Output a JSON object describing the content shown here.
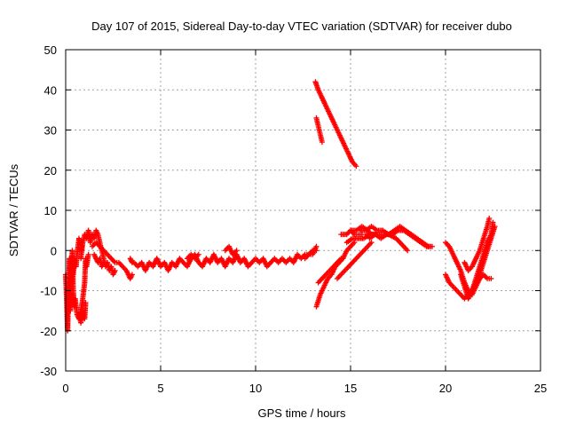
{
  "chart_data": {
    "type": "scatter",
    "title": "Day 107 of 2015, Sidereal Day-to-day VTEC variation (SDTVAR) for receiver dubo",
    "xlabel": "GPS time / hours",
    "ylabel": "SDTVAR / TECUs",
    "xlim": [
      0,
      25
    ],
    "ylim": [
      -30,
      50
    ],
    "xticks": [
      0,
      5,
      10,
      15,
      20,
      25
    ],
    "yticks": [
      -30,
      -20,
      -10,
      0,
      10,
      20,
      30,
      40,
      50
    ],
    "grid": true,
    "marker": "+",
    "series": [
      {
        "name": "SDTVAR",
        "color": "#ff0000",
        "segments": [
          [
            [
              0.0,
              -6
            ],
            [
              0.05,
              -12
            ],
            [
              0.1,
              -20
            ],
            [
              0.15,
              -10
            ],
            [
              0.2,
              -2
            ],
            [
              0.25,
              -15
            ],
            [
              0.3,
              -5
            ],
            [
              0.35,
              0
            ],
            [
              0.4,
              -10
            ],
            [
              0.45,
              -14
            ],
            [
              0.5,
              -12
            ],
            [
              0.6,
              -16
            ],
            [
              0.7,
              -17
            ],
            [
              0.8,
              -15
            ],
            [
              0.9,
              -12
            ],
            [
              1.0,
              -8
            ],
            [
              1.05,
              -2
            ],
            [
              1.1,
              -4
            ],
            [
              1.2,
              -1
            ]
          ],
          [
            [
              0.25,
              -4
            ],
            [
              0.3,
              -8
            ],
            [
              0.35,
              -3
            ],
            [
              0.4,
              -6
            ],
            [
              0.45,
              -2
            ],
            [
              0.55,
              -4
            ],
            [
              0.6,
              -1
            ],
            [
              0.7,
              3
            ],
            [
              0.8,
              0
            ],
            [
              0.9,
              2
            ]
          ],
          [
            [
              0.7,
              -16
            ],
            [
              0.8,
              -18
            ],
            [
              0.9,
              -15
            ],
            [
              1.0,
              -17
            ],
            [
              1.05,
              -13
            ]
          ],
          [
            [
              0.8,
              -2
            ],
            [
              0.9,
              2
            ],
            [
              1.0,
              4
            ],
            [
              1.1,
              3
            ],
            [
              1.2,
              5
            ],
            [
              1.3,
              2
            ],
            [
              1.4,
              4
            ],
            [
              1.5,
              3
            ],
            [
              1.6,
              5
            ],
            [
              1.7,
              4
            ],
            [
              1.8,
              2
            ],
            [
              1.9,
              0
            ],
            [
              2.0,
              -2
            ],
            [
              2.1,
              -4
            ],
            [
              2.2,
              -3
            ],
            [
              2.3,
              -5
            ],
            [
              2.4,
              -4
            ],
            [
              2.5,
              -6
            ],
            [
              2.6,
              -5
            ]
          ],
          [
            [
              1.5,
              -1
            ],
            [
              1.6,
              -2
            ],
            [
              1.7,
              -3
            ],
            [
              1.8,
              -2
            ],
            [
              1.9,
              -4
            ],
            [
              2.0,
              -3
            ]
          ],
          [
            [
              1.4,
              1
            ],
            [
              1.6,
              2
            ],
            [
              1.8,
              1
            ],
            [
              2.0,
              0
            ],
            [
              2.2,
              -1
            ],
            [
              2.4,
              -2
            ],
            [
              2.6,
              -3
            ],
            [
              2.8,
              -3
            ],
            [
              3.0,
              -4
            ],
            [
              3.2,
              -5
            ],
            [
              3.4,
              -7
            ],
            [
              3.5,
              -6
            ]
          ],
          [
            [
              3.4,
              -2
            ],
            [
              3.5,
              -3
            ],
            [
              3.6,
              -3
            ],
            [
              3.8,
              -4
            ],
            [
              4.0,
              -3
            ],
            [
              4.2,
              -5
            ],
            [
              4.4,
              -3
            ],
            [
              4.6,
              -4
            ],
            [
              4.8,
              -2
            ],
            [
              5.0,
              -4
            ],
            [
              5.2,
              -3
            ],
            [
              5.4,
              -5
            ],
            [
              5.6,
              -3
            ],
            [
              5.8,
              -4
            ],
            [
              6.0,
              -2
            ],
            [
              6.2,
              -3
            ],
            [
              6.4,
              -4
            ],
            [
              6.6,
              -2
            ],
            [
              6.8,
              -1
            ],
            [
              7.0,
              -3
            ],
            [
              7.2,
              -4
            ],
            [
              7.4,
              -2
            ],
            [
              7.6,
              -3
            ],
            [
              7.8,
              -1
            ],
            [
              8.0,
              -3
            ],
            [
              8.2,
              -2
            ],
            [
              8.4,
              -4
            ],
            [
              8.6,
              -2
            ],
            [
              8.8,
              -3
            ],
            [
              9.0,
              -1
            ],
            [
              9.2,
              -3
            ],
            [
              9.4,
              -2
            ],
            [
              9.6,
              -4
            ],
            [
              9.8,
              -3
            ],
            [
              10.0,
              -2
            ],
            [
              10.2,
              -3
            ],
            [
              10.4,
              -2
            ],
            [
              10.6,
              -4
            ],
            [
              10.8,
              -3
            ],
            [
              11.0,
              -2
            ],
            [
              11.2,
              -3
            ],
            [
              11.4,
              -2
            ],
            [
              11.6,
              -3
            ],
            [
              11.8,
              -2
            ],
            [
              12.0,
              -3
            ],
            [
              12.2,
              -1
            ],
            [
              12.4,
              -2
            ],
            [
              12.6,
              -1
            ],
            [
              12.8,
              -1
            ],
            [
              13.0,
              0
            ],
            [
              13.2,
              0
            ]
          ],
          [
            [
              6.4,
              -2
            ],
            [
              6.6,
              -1
            ],
            [
              6.8,
              -2
            ],
            [
              7.0,
              -1
            ]
          ],
          [
            [
              8.4,
              0
            ],
            [
              8.6,
              1
            ],
            [
              8.8,
              -1
            ],
            [
              9.0,
              0
            ]
          ],
          [
            [
              12.6,
              -2
            ],
            [
              12.8,
              -1
            ],
            [
              13.0,
              -1
            ],
            [
              13.2,
              1
            ]
          ],
          [
            [
              13.15,
              42
            ],
            [
              13.3,
              40
            ],
            [
              13.5,
              38
            ],
            [
              13.7,
              36
            ],
            [
              13.9,
              34
            ],
            [
              14.1,
              32
            ],
            [
              14.3,
              30
            ],
            [
              14.5,
              28
            ],
            [
              14.7,
              26
            ],
            [
              14.9,
              24
            ],
            [
              15.1,
              22
            ],
            [
              15.3,
              21
            ]
          ],
          [
            [
              13.2,
              33
            ],
            [
              13.3,
              31
            ],
            [
              13.4,
              29
            ],
            [
              13.5,
              27
            ]
          ],
          [
            [
              13.2,
              -14
            ],
            [
              13.4,
              -11
            ],
            [
              13.6,
              -9
            ],
            [
              13.8,
              -7
            ],
            [
              14.0,
              -6
            ],
            [
              14.2,
              -4
            ],
            [
              14.4,
              -3
            ],
            [
              14.6,
              -2
            ],
            [
              14.8,
              0
            ],
            [
              15.0,
              1
            ],
            [
              15.2,
              2
            ]
          ],
          [
            [
              13.3,
              -8
            ],
            [
              13.5,
              -7
            ],
            [
              13.7,
              -6
            ],
            [
              13.9,
              -5
            ],
            [
              14.1,
              -4
            ],
            [
              14.3,
              -3
            ],
            [
              14.5,
              -2
            ]
          ],
          [
            [
              14.3,
              -7
            ],
            [
              14.5,
              -6
            ],
            [
              14.7,
              -5
            ],
            [
              14.9,
              -4
            ],
            [
              15.1,
              -3
            ],
            [
              15.3,
              -2
            ],
            [
              15.5,
              -1
            ],
            [
              15.7,
              0
            ],
            [
              15.9,
              1
            ],
            [
              16.1,
              2
            ]
          ],
          [
            [
              14.5,
              4
            ],
            [
              14.8,
              4
            ],
            [
              15.0,
              5
            ],
            [
              15.2,
              4
            ],
            [
              15.4,
              4
            ],
            [
              15.6,
              4
            ]
          ],
          [
            [
              15.0,
              5
            ],
            [
              15.3,
              5
            ],
            [
              15.6,
              6
            ],
            [
              15.9,
              5
            ],
            [
              16.1,
              4
            ]
          ],
          [
            [
              14.8,
              2
            ],
            [
              15.1,
              3
            ],
            [
              15.4,
              3
            ],
            [
              15.7,
              3
            ],
            [
              16.0,
              4
            ],
            [
              16.3,
              4
            ]
          ],
          [
            [
              15.5,
              5
            ],
            [
              15.8,
              5
            ],
            [
              16.1,
              6
            ],
            [
              16.4,
              5
            ],
            [
              16.7,
              5
            ],
            [
              17.0,
              4
            ],
            [
              17.3,
              5
            ],
            [
              17.6,
              6
            ],
            [
              17.9,
              5
            ],
            [
              18.2,
              4
            ],
            [
              18.5,
              3
            ],
            [
              18.8,
              2
            ],
            [
              19.1,
              1
            ]
          ],
          [
            [
              15.8,
              4
            ],
            [
              16.2,
              4
            ],
            [
              16.6,
              4
            ],
            [
              17.0,
              4
            ],
            [
              17.4,
              3
            ],
            [
              17.6,
              2
            ],
            [
              17.8,
              1
            ],
            [
              18.0,
              0
            ]
          ],
          [
            [
              16.0,
              3
            ],
            [
              16.3,
              4
            ],
            [
              16.6,
              3
            ],
            [
              16.9,
              4
            ],
            [
              17.2,
              4
            ],
            [
              17.5,
              5
            ],
            [
              17.8,
              5
            ],
            [
              18.1,
              4
            ],
            [
              18.4,
              3
            ],
            [
              18.7,
              2
            ],
            [
              19.0,
              1
            ],
            [
              19.3,
              1
            ]
          ],
          [
            [
              20.0,
              2
            ],
            [
              20.2,
              1
            ],
            [
              20.4,
              -1
            ],
            [
              20.6,
              -3
            ],
            [
              20.8,
              -5
            ],
            [
              21.0,
              -8
            ],
            [
              21.2,
              -10
            ],
            [
              21.4,
              -11
            ],
            [
              21.6,
              -9
            ],
            [
              21.8,
              -7
            ],
            [
              22.0,
              -6
            ],
            [
              22.2,
              -7
            ],
            [
              22.4,
              -7
            ]
          ],
          [
            [
              20.0,
              -6
            ],
            [
              20.2,
              -8
            ],
            [
              20.4,
              -9
            ],
            [
              20.6,
              -10
            ],
            [
              20.8,
              -11
            ],
            [
              21.0,
              -12
            ],
            [
              21.2,
              -11
            ],
            [
              21.4,
              -10
            ],
            [
              21.6,
              -8
            ],
            [
              21.8,
              -6
            ],
            [
              22.0,
              -3
            ],
            [
              22.2,
              0
            ],
            [
              22.4,
              3
            ],
            [
              22.6,
              6
            ]
          ],
          [
            [
              20.8,
              -6
            ],
            [
              21.0,
              -9
            ],
            [
              21.2,
              -12
            ],
            [
              21.4,
              -10
            ],
            [
              21.6,
              -7
            ],
            [
              21.8,
              -4
            ],
            [
              22.0,
              -1
            ],
            [
              22.2,
              2
            ],
            [
              22.4,
              4
            ],
            [
              22.5,
              7
            ]
          ],
          [
            [
              21.0,
              -3
            ],
            [
              21.2,
              -5
            ],
            [
              21.4,
              -4
            ],
            [
              21.6,
              -2
            ],
            [
              21.8,
              0
            ],
            [
              22.0,
              3
            ],
            [
              22.2,
              6
            ],
            [
              22.3,
              8
            ]
          ]
        ]
      }
    ]
  }
}
